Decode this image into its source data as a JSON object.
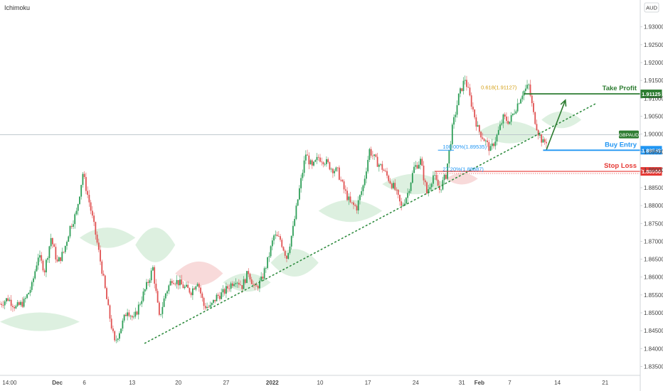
{
  "indicator": {
    "label": "Ichimoku"
  },
  "currency_badge": {
    "label": "AUD"
  },
  "colors": {
    "up": "#26a69a",
    "up_fill": "#2e9e57",
    "down": "#e05252",
    "cloud_green": "#d9eedd",
    "cloud_red": "#f7d6d6",
    "trendline": "#2e8b3e",
    "take_profit": "#2e7d32",
    "buy_entry": "#2196f3",
    "stop_loss": "#e53935",
    "fib": "#d4a017",
    "current_price": "#2e7d32"
  },
  "chart_data": {
    "type": "candlestick",
    "symbol": "GBPAUD",
    "ylim": [
      1.8325,
      1.9375
    ],
    "y_ticks": [
      "1.93000",
      "1.92500",
      "1.92000",
      "1.91500",
      "1.91000",
      "1.90500",
      "1.90000",
      "1.89500",
      "1.89000",
      "1.88500",
      "1.88000",
      "1.87500",
      "1.87000",
      "1.86500",
      "1.86000",
      "1.85500",
      "1.85000",
      "1.84500",
      "1.84000",
      "1.83500"
    ],
    "x_ticks": [
      {
        "label": "14:00",
        "x": 0.6
      },
      {
        "label": "Dec",
        "x": 3.6
      },
      {
        "label": "6",
        "x": 5.3
      },
      {
        "label": "13",
        "x": 8.3
      },
      {
        "label": "20",
        "x": 11.2
      },
      {
        "label": "27",
        "x": 14.2
      },
      {
        "label": "2022",
        "x": 17.1
      },
      {
        "label": "10",
        "x": 20.1
      },
      {
        "label": "17",
        "x": 23.1
      },
      {
        "label": "24",
        "x": 26.1
      },
      {
        "label": "31",
        "x": 29.0
      },
      {
        "label": "Feb",
        "x": 30.1
      },
      {
        "label": "7",
        "x": 32.0
      },
      {
        "label": "14",
        "x": 35.0
      },
      {
        "label": "21",
        "x": 38.0
      }
    ],
    "close_path": [
      [
        0,
        1.8525
      ],
      [
        0.5,
        1.854
      ],
      [
        1,
        1.8515
      ],
      [
        1.5,
        1.853
      ],
      [
        2,
        1.8575
      ],
      [
        2.4,
        1.866
      ],
      [
        2.8,
        1.862
      ],
      [
        3.2,
        1.871
      ],
      [
        3.6,
        1.864
      ],
      [
        4,
        1.867
      ],
      [
        4.4,
        1.874
      ],
      [
        4.8,
        1.878
      ],
      [
        5.2,
        1.889
      ],
      [
        5.6,
        1.881
      ],
      [
        6,
        1.872
      ],
      [
        6.4,
        1.862
      ],
      [
        6.8,
        1.851
      ],
      [
        7.2,
        1.8415
      ],
      [
        7.6,
        1.846
      ],
      [
        8,
        1.851
      ],
      [
        8.4,
        1.848
      ],
      [
        8.8,
        1.853
      ],
      [
        9.2,
        1.8575
      ],
      [
        9.6,
        1.8625
      ],
      [
        10,
        1.8485
      ],
      [
        10.4,
        1.8555
      ],
      [
        10.8,
        1.8595
      ],
      [
        11.2,
        1.8585
      ],
      [
        11.6,
        1.857
      ],
      [
        12,
        1.856
      ],
      [
        12.4,
        1.859
      ],
      [
        12.8,
        1.852
      ],
      [
        13.2,
        1.8515
      ],
      [
        13.6,
        1.8545
      ],
      [
        14,
        1.8555
      ],
      [
        14.4,
        1.8575
      ],
      [
        14.8,
        1.8595
      ],
      [
        15.2,
        1.8575
      ],
      [
        15.6,
        1.8615
      ],
      [
        16,
        1.8565
      ],
      [
        16.4,
        1.859
      ],
      [
        16.8,
        1.8645
      ],
      [
        17.2,
        1.8715
      ],
      [
        17.6,
        1.8705
      ],
      [
        18,
        1.8655
      ],
      [
        18.4,
        1.8735
      ],
      [
        18.8,
        1.8845
      ],
      [
        19.2,
        1.8945
      ],
      [
        19.6,
        1.8905
      ],
      [
        20,
        1.8935
      ],
      [
        20.4,
        1.8925
      ],
      [
        20.8,
        1.8905
      ],
      [
        21.2,
        1.8895
      ],
      [
        21.6,
        1.8845
      ],
      [
        22,
        1.8805
      ],
      [
        22.4,
        1.8795
      ],
      [
        22.8,
        1.8855
      ],
      [
        23.2,
        1.8955
      ],
      [
        23.6,
        1.8925
      ],
      [
        24,
        1.8905
      ],
      [
        24.4,
        1.8875
      ],
      [
        24.8,
        1.8845
      ],
      [
        25.2,
        1.8795
      ],
      [
        25.6,
        1.8835
      ],
      [
        26,
        1.8905
      ],
      [
        26.4,
        1.8925
      ],
      [
        26.8,
        1.8835
      ],
      [
        27.2,
        1.8885
      ],
      [
        27.6,
        1.8845
      ],
      [
        28,
        1.8885
      ],
      [
        28.4,
        1.9015
      ],
      [
        28.8,
        1.9105
      ],
      [
        29.2,
        1.9155
      ],
      [
        29.6,
        1.9085
      ],
      [
        30,
        1.9015
      ],
      [
        30.4,
        1.8985
      ],
      [
        30.8,
        1.8955
      ],
      [
        31.2,
        1.8995
      ],
      [
        31.6,
        1.9045
      ],
      [
        32,
        1.9035
      ],
      [
        32.4,
        1.9075
      ],
      [
        32.8,
        1.9115
      ],
      [
        33.2,
        1.9135
      ],
      [
        33.5,
        1.9055
      ],
      [
        33.8,
        1.9005
      ],
      [
        34.1,
        1.8975
      ],
      [
        34.4,
        1.8985
      ]
    ],
    "ichimoku_cloud": [
      {
        "from": 0,
        "to": 5,
        "top": 1.8515,
        "bottom": 1.8435,
        "color": "green"
      },
      {
        "from": 5,
        "to": 8.5,
        "top": 1.8755,
        "bottom": 1.8665,
        "color": "green"
      },
      {
        "from": 8.5,
        "to": 11,
        "top": 1.8775,
        "bottom": 1.8605,
        "color": "green"
      },
      {
        "from": 11,
        "to": 14,
        "top": 1.8665,
        "bottom": 1.8555,
        "color": "red"
      },
      {
        "from": 14,
        "to": 17,
        "top": 1.8625,
        "bottom": 1.8545,
        "color": "green"
      },
      {
        "from": 17,
        "to": 20,
        "top": 1.8705,
        "bottom": 1.8575,
        "color": "green"
      },
      {
        "from": 20,
        "to": 24,
        "top": 1.8835,
        "bottom": 1.8735,
        "color": "green"
      },
      {
        "from": 24,
        "to": 28,
        "top": 1.8905,
        "bottom": 1.8815,
        "color": "green"
      },
      {
        "from": 28,
        "to": 30,
        "top": 1.8895,
        "bottom": 1.8855,
        "color": "red"
      },
      {
        "from": 30,
        "to": 34,
        "top": 1.9055,
        "bottom": 1.8955,
        "color": "green"
      },
      {
        "from": 34,
        "to": 36.5,
        "top": 1.9075,
        "bottom": 1.9005,
        "color": "green"
      }
    ],
    "trendline": {
      "points": [
        [
          9.1,
          1.8415
        ],
        [
          37.4,
          1.9085
        ]
      ],
      "style": "dotted"
    },
    "levels": [
      {
        "name": "Take Profit",
        "value": 1.91125,
        "label": "1.91125",
        "from": 32.9
      },
      {
        "name": "Buy Entry",
        "value": 1.89548,
        "label": "1.89548",
        "from": 34.1
      },
      {
        "name": "Stop Loss",
        "value": 1.88956,
        "label": "1.88956",
        "from": 27.3
      }
    ],
    "current_price": {
      "symbol": "GBPAUD",
      "value": 1.8998
    },
    "fib_labels": [
      {
        "text": "0.618(1.91127)",
        "x": 30.2,
        "y": 1.9125,
        "color": "#d4a017"
      },
      {
        "text": "100.00%(1.89535)",
        "x": 27.8,
        "y": 1.8959,
        "color": "#2196f3"
      },
      {
        "text": "27.20%(1.88887)",
        "x": 27.8,
        "y": 1.8897,
        "color": "#2196f3"
      }
    ],
    "fib_box_top": [
      27.5,
      1.8955,
      28.5,
      1.8955
    ],
    "projection_arrow": [
      [
        34.3,
        1.8955
      ],
      [
        35.5,
        1.9095
      ]
    ],
    "x_range": [
      0,
      40.2
    ]
  }
}
